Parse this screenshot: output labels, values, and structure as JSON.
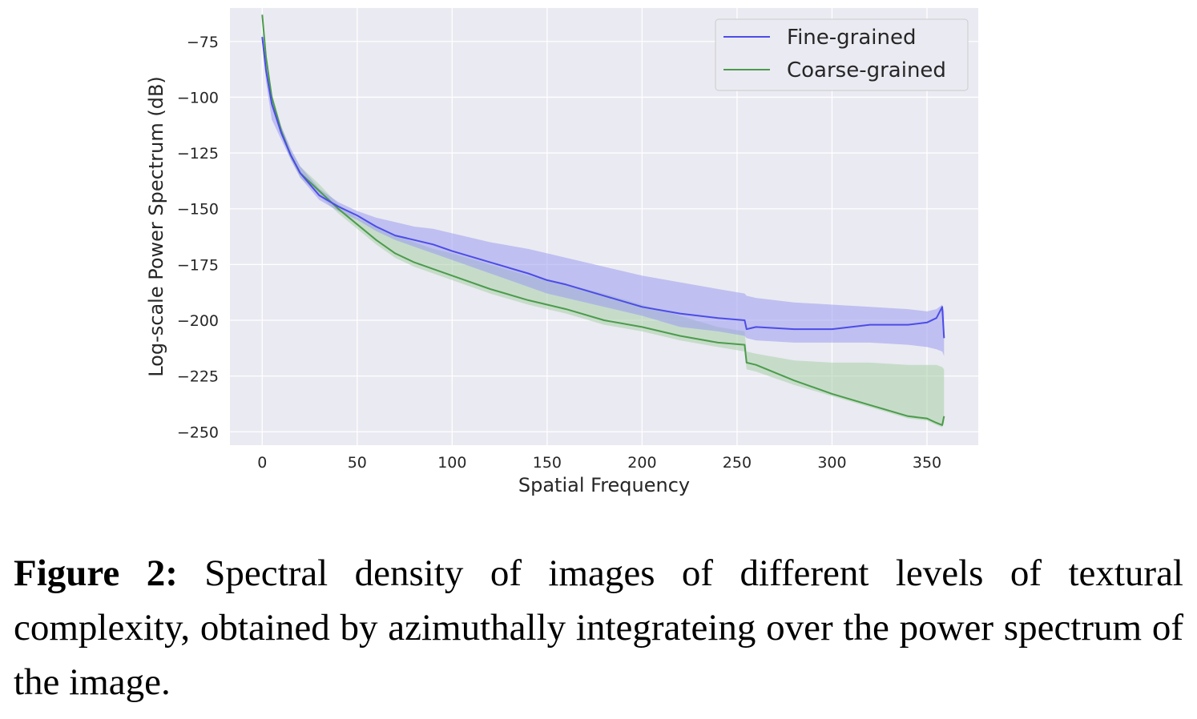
{
  "chart_data": {
    "type": "line",
    "title": "",
    "xlabel": "Spatial Frequency",
    "ylabel": "Log-scale Power Spectrum (dB)",
    "xlim": [
      -17,
      377
    ],
    "ylim": [
      -256,
      -60
    ],
    "xticks": [
      0,
      50,
      100,
      150,
      200,
      250,
      300,
      350
    ],
    "yticks": [
      -250,
      -225,
      -200,
      -175,
      -150,
      -125,
      -100,
      -75
    ],
    "xtick_labels": [
      "0",
      "50",
      "100",
      "150",
      "200",
      "250",
      "300",
      "350"
    ],
    "ytick_labels": [
      "−250",
      "−225",
      "−200",
      "−175",
      "−150",
      "−125",
      "−100",
      "−75"
    ],
    "grid": true,
    "legend_position": "top-right",
    "x": [
      0,
      2,
      5,
      10,
      15,
      20,
      30,
      40,
      50,
      60,
      70,
      80,
      90,
      100,
      120,
      140,
      150,
      160,
      180,
      200,
      220,
      240,
      254,
      255,
      260,
      280,
      300,
      320,
      340,
      350,
      355,
      358,
      359
    ],
    "series": [
      {
        "name": "Fine-grained",
        "color": "#4c4ce8",
        "fill_color": "#9b9bf0",
        "values": [
          -73,
          -88,
          -103,
          -116,
          -126,
          -134,
          -144,
          -149,
          -153,
          -158,
          -162,
          -164,
          -166,
          -169,
          -174,
          -179,
          -182,
          -184,
          -189,
          -194,
          -197,
          -199,
          -200,
          -204,
          -203,
          -204,
          -204,
          -202,
          -202,
          -201,
          -199,
          -194,
          -208
        ],
        "upper": [
          -71,
          -85,
          -99,
          -113,
          -123,
          -131,
          -141,
          -147,
          -151,
          -154,
          -156,
          -158,
          -159,
          -161,
          -165,
          -168,
          -170,
          -172,
          -176,
          -180,
          -183,
          -186,
          -188,
          -189,
          -190,
          -192,
          -193,
          -194,
          -195,
          -196,
          -195,
          -193,
          -196
        ],
        "lower": [
          -75,
          -93,
          -110,
          -119,
          -128,
          -136,
          -146,
          -151,
          -155,
          -160,
          -164,
          -167,
          -170,
          -173,
          -179,
          -185,
          -188,
          -190,
          -194,
          -198,
          -203,
          -205,
          -207,
          -208,
          -209,
          -210,
          -210,
          -210,
          -211,
          -212,
          -213,
          -214,
          -216
        ]
      },
      {
        "name": "Coarse-grained",
        "color": "#4c9b4c",
        "fill_color": "#a8d0a8",
        "values": [
          -63,
          -82,
          -100,
          -115,
          -126,
          -134,
          -142,
          -150,
          -157,
          -164,
          -170,
          -174,
          -177,
          -180,
          -186,
          -191,
          -193,
          -195,
          -200,
          -203,
          -207,
          -210,
          -211,
          -219,
          -220,
          -227,
          -233,
          -238,
          -243,
          -244,
          -246,
          -247,
          -243
        ],
        "upper": [
          -62,
          -80,
          -98,
          -113,
          -124,
          -131,
          -139,
          -148,
          -154,
          -158,
          -162,
          -165,
          -168,
          -170,
          -175,
          -180,
          -182,
          -184,
          -188,
          -193,
          -198,
          -203,
          -205,
          -214,
          -215,
          -218,
          -219,
          -219,
          -220,
          -220,
          -220,
          -221,
          -222
        ],
        "lower": [
          -64,
          -84,
          -102,
          -117,
          -128,
          -136,
          -144,
          -152,
          -159,
          -166,
          -172,
          -176,
          -179,
          -182,
          -188,
          -193,
          -195,
          -197,
          -202,
          -205,
          -209,
          -212,
          -214,
          -222,
          -223,
          -229,
          -234,
          -239,
          -244,
          -245,
          -247,
          -248,
          -246
        ]
      }
    ]
  },
  "caption": {
    "label": "Figure 2:",
    "text": " Spectral density of images of different levels of textural complexity, obtained by azimuthally integrateing over the power spectrum of the image."
  }
}
